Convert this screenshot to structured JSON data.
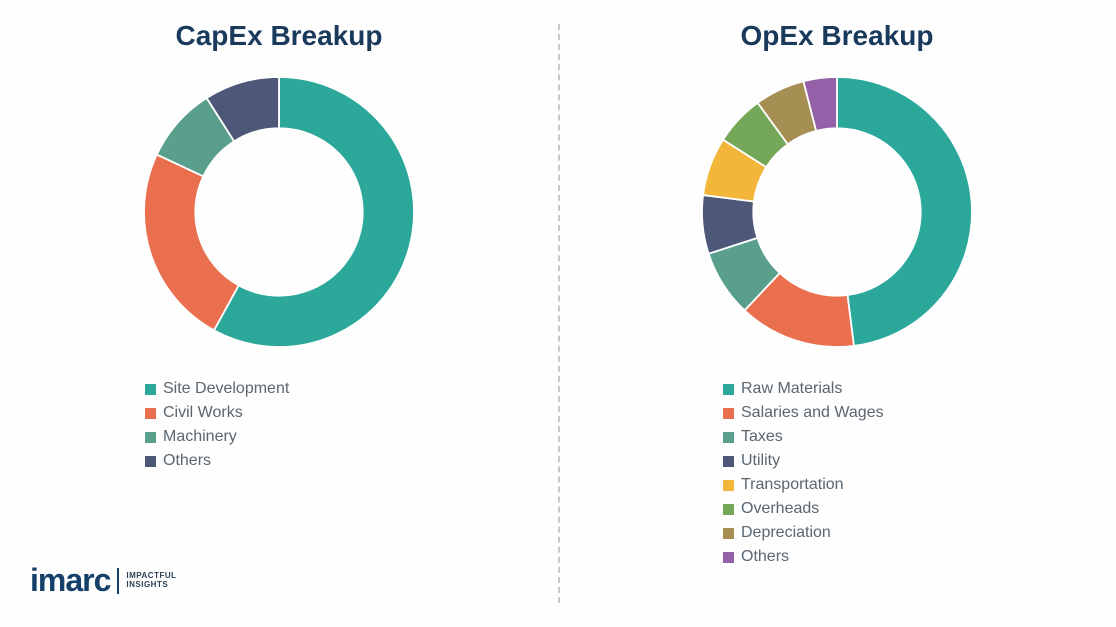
{
  "background_color": "#ffffff",
  "divider_color": "#c4c9cf",
  "title_color": "#1a3a5c",
  "legend_text_color": "#5a6670",
  "logo": {
    "brand": "imarc",
    "tagline_line1": "IMPACTFUL",
    "tagline_line2": "INSIGHTS",
    "color": "#15406a"
  },
  "capex": {
    "title": "CapEx Breakup",
    "type": "donut",
    "inner_radius_ratio": 0.62,
    "title_fontsize": 28,
    "legend_fontsize": 16,
    "slices": [
      {
        "label": "Site Development",
        "value": 58,
        "color": "#2ca89a"
      },
      {
        "label": "Civil Works",
        "value": 24,
        "color": "#e96f4f"
      },
      {
        "label": "Machinery",
        "value": 9,
        "color": "#5a9e8c"
      },
      {
        "label": "Others",
        "value": 9,
        "color": "#4d5878"
      }
    ]
  },
  "opex": {
    "title": "OpEx Breakup",
    "type": "donut",
    "inner_radius_ratio": 0.62,
    "title_fontsize": 28,
    "legend_fontsize": 16,
    "slices": [
      {
        "label": "Raw Materials",
        "value": 48,
        "color": "#2ca89a"
      },
      {
        "label": "Salaries and Wages",
        "value": 14,
        "color": "#e96f4f"
      },
      {
        "label": "Taxes",
        "value": 8,
        "color": "#5a9e8c"
      },
      {
        "label": "Utility",
        "value": 7,
        "color": "#4d5878"
      },
      {
        "label": "Transportation",
        "value": 7,
        "color": "#f2b63a"
      },
      {
        "label": "Overheads",
        "value": 6,
        "color": "#74a758"
      },
      {
        "label": "Depreciation",
        "value": 6,
        "color": "#a58f52"
      },
      {
        "label": "Others",
        "value": 4,
        "color": "#9460a8"
      }
    ]
  }
}
